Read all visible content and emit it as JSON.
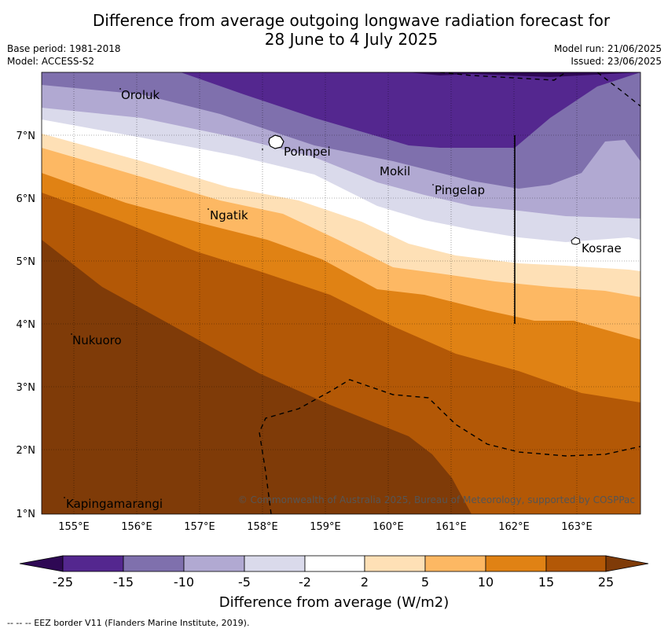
{
  "title": {
    "line1": "Difference from average outgoing longwave radiation forecast for",
    "line2": "28 June to 4 July 2025"
  },
  "meta": {
    "base_period": "Base period: 1981-2018",
    "model": "Model: ACCESS-S2",
    "model_run": "Model run: 21/06/2025",
    "issued": "Issued: 23/06/2025"
  },
  "axes": {
    "x_ticks": [
      "155°E",
      "156°E",
      "157°E",
      "158°E",
      "159°E",
      "160°E",
      "161°E",
      "162°E",
      "163°E"
    ],
    "y_ticks": [
      "7°N",
      "6°N",
      "5°N",
      "4°N",
      "3°N",
      "2°N",
      "1°N"
    ]
  },
  "places": [
    {
      "name": "Oroluk",
      "id": "oroluk"
    },
    {
      "name": "Pohnpei",
      "id": "pohnpei"
    },
    {
      "name": "Mokil",
      "id": "mokil"
    },
    {
      "name": "Pingelap",
      "id": "pingelap"
    },
    {
      "name": "Ngatik",
      "id": "ngatik"
    },
    {
      "name": "Kosrae",
      "id": "kosrae"
    },
    {
      "name": "Nukuoro",
      "id": "nukuoro"
    },
    {
      "name": "Kapingamarangi",
      "id": "kapingamarangi"
    }
  ],
  "copyright": "© Commonwealth of Australia 2025, Bureau of Meteorology, supported by COSPPac",
  "colorbar": {
    "title": "Difference from average (W/m2)",
    "labels": [
      "-25",
      "-15",
      "-10",
      "-5",
      "-2",
      "2",
      "5",
      "10",
      "15",
      "25"
    ],
    "colors": [
      "#2e0854",
      "#54278f",
      "#7f70ad",
      "#b1a9d2",
      "#dadaeb",
      "#ffffff",
      "#fee0b6",
      "#fdb863",
      "#e08214",
      "#b35806",
      "#7f3b08"
    ]
  },
  "footnote": "--  --  -- EEZ border V11 (Flanders Marine Institute, 2019)."
}
